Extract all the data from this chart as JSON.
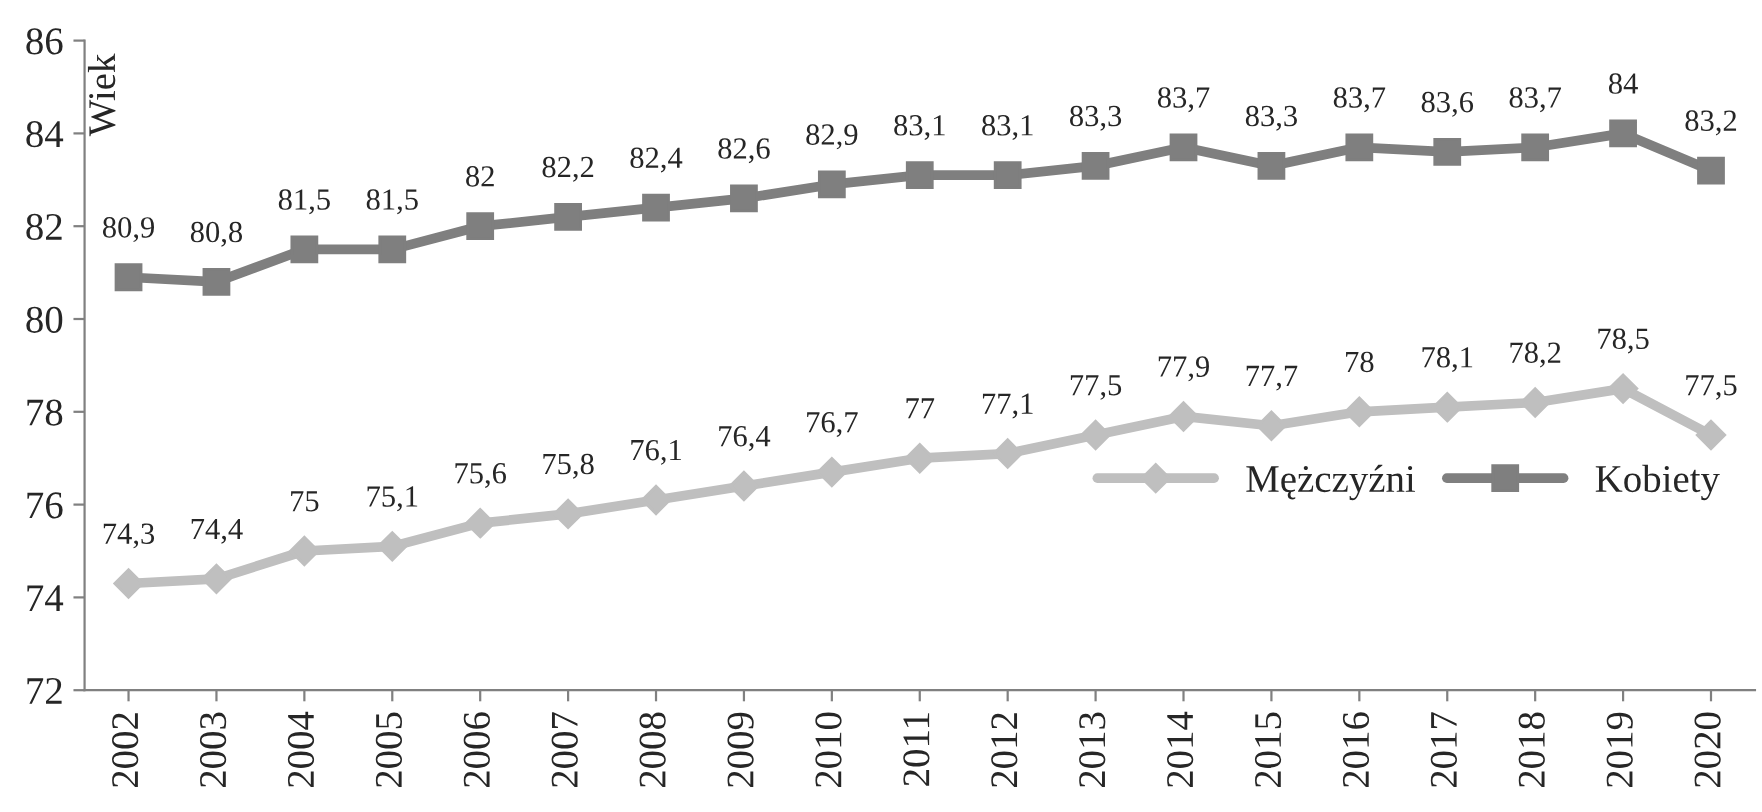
{
  "chart_data": {
    "type": "line",
    "ylabel": "Wiek",
    "categories": [
      "2002",
      "2003",
      "2004",
      "2005",
      "2006",
      "2007",
      "2008",
      "2009",
      "2010",
      "2011",
      "2012",
      "2013",
      "2014",
      "2015",
      "2016",
      "2017",
      "2018",
      "2019",
      "2020"
    ],
    "series": [
      {
        "name": "Mężczyźni",
        "color": "#bfbfbf",
        "marker": "diamond",
        "values": [
          74.3,
          74.4,
          75,
          75.1,
          75.6,
          75.8,
          76.1,
          76.4,
          76.7,
          77,
          77.1,
          77.5,
          77.9,
          77.7,
          78,
          78.1,
          78.2,
          78.5,
          77.5
        ],
        "value_labels": [
          "74,3",
          "74,4",
          "75",
          "75,1",
          "75,6",
          "75,8",
          "76,1",
          "76,4",
          "76,7",
          "77",
          "77,1",
          "77,5",
          "77,9",
          "77,7",
          "78",
          "78,1",
          "78,2",
          "78,5",
          "77,5"
        ]
      },
      {
        "name": "Kobiety",
        "color": "#7f7f7f",
        "marker": "square",
        "values": [
          80.9,
          80.8,
          81.5,
          81.5,
          82,
          82.2,
          82.4,
          82.6,
          82.9,
          83.1,
          83.1,
          83.3,
          83.7,
          83.3,
          83.7,
          83.6,
          83.7,
          84,
          83.2
        ],
        "value_labels": [
          "80,9",
          "80,8",
          "81,5",
          "81,5",
          "82",
          "82,2",
          "82,4",
          "82,6",
          "82,9",
          "83,1",
          "83,1",
          "83,3",
          "83,7",
          "83,3",
          "83,7",
          "83,6",
          "83,7",
          "84",
          "83,2"
        ]
      }
    ],
    "ylim": [
      72,
      86
    ],
    "yticks": [
      72,
      74,
      76,
      78,
      80,
      82,
      84,
      86
    ],
    "grid": false,
    "legend": "right",
    "line_style": "solid"
  }
}
